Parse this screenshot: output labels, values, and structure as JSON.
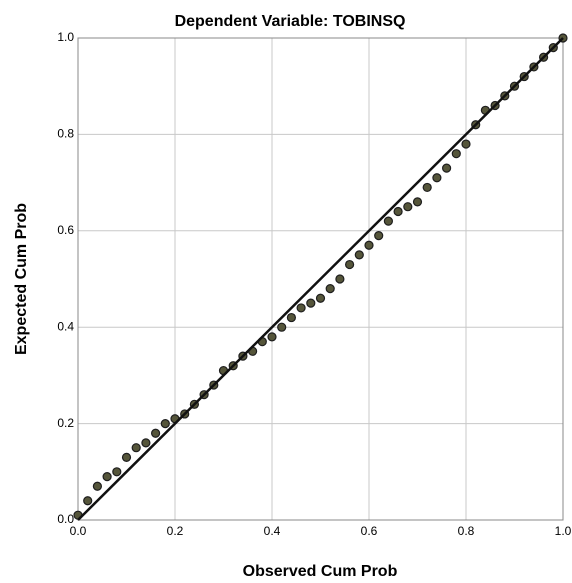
{
  "chart_data": {
    "type": "scatter",
    "title": "Dependent Variable: TOBINSQ",
    "x_label": "Observed Cum Prob",
    "y_label": "Expected Cum Prob",
    "xlim": [
      0,
      1
    ],
    "ylim": [
      0,
      1
    ],
    "xticks": [
      {
        "value": 0,
        "label": "0.0"
      },
      0.2,
      0.4,
      0.6,
      0.8,
      {
        "value": 1,
        "label": "1.0"
      }
    ],
    "yticks": [
      {
        "value": 0,
        "label": "0.0"
      },
      0.2,
      0.4,
      0.6,
      0.8,
      {
        "value": 1,
        "label": "1.0"
      }
    ],
    "grid": true,
    "reference_line": true,
    "series": [
      {
        "color": "#55553a",
        "x": [
          0,
          0.02,
          0.04,
          0.06,
          0.08,
          0.1,
          0.12,
          0.14,
          0.16,
          0.18,
          0.2,
          0.22,
          0.24,
          0.26,
          0.28,
          0.3,
          0.32,
          0.34,
          0.36,
          0.38,
          0.4,
          0.42,
          0.44,
          0.46,
          0.48,
          0.5,
          0.52,
          0.54,
          0.56,
          0.58,
          0.6,
          0.62,
          0.64,
          0.66,
          0.68,
          0.7,
          0.72,
          0.74,
          0.76,
          0.78,
          0.8,
          0.82,
          0.84,
          0.86,
          0.88,
          0.9,
          0.92,
          0.94,
          0.96,
          0.98,
          1
        ],
        "values": [
          0.01,
          0.04,
          0.07,
          0.09,
          0.1,
          0.13,
          0.15,
          0.16,
          0.18,
          0.2,
          0.21,
          0.22,
          0.24,
          0.26,
          0.28,
          0.31,
          0.32,
          0.34,
          0.35,
          0.37,
          0.38,
          0.4,
          0.42,
          0.44,
          0.45,
          0.46,
          0.48,
          0.5,
          0.53,
          0.55,
          0.57,
          0.59,
          0.62,
          0.64,
          0.65,
          0.66,
          0.69,
          0.71,
          0.73,
          0.76,
          0.78,
          0.82,
          0.85,
          0.86,
          0.88,
          0.9,
          0.92,
          0.94,
          0.96,
          0.98,
          1
        ]
      }
    ]
  }
}
